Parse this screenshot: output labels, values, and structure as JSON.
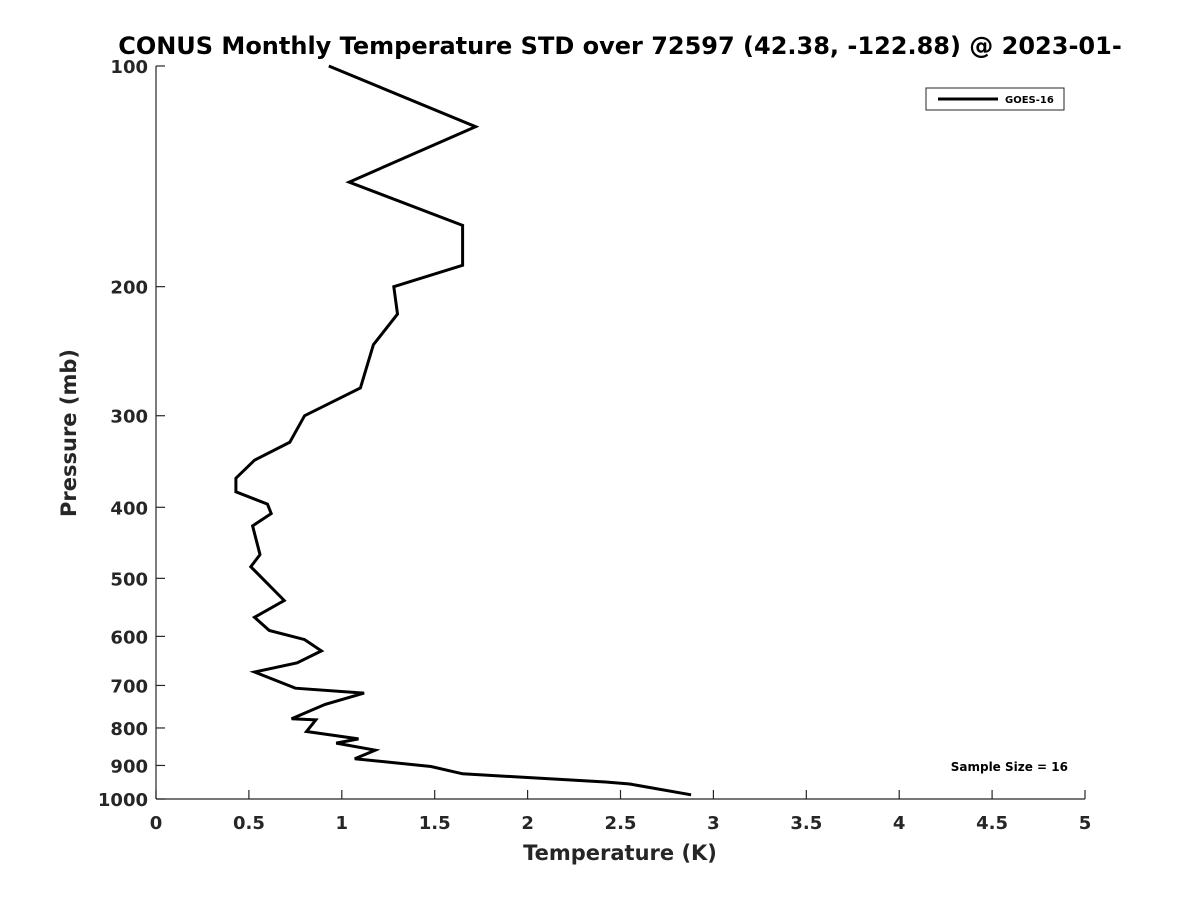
{
  "chart_data": {
    "type": "line",
    "title": "CONUS Monthly Temperature STD over 72597 (42.38, -122.88) @ 2023-01-",
    "xlabel": "Temperature (K)",
    "ylabel": "Pressure (mb)",
    "xlim": [
      0,
      5
    ],
    "ylim": [
      100,
      1000
    ],
    "yscale": "log",
    "yreversed": true,
    "xticks": [
      0,
      0.5,
      1,
      1.5,
      2,
      2.5,
      3,
      3.5,
      4,
      4.5,
      5
    ],
    "xtick_labels": [
      "0",
      "0.5",
      "1",
      "1.5",
      "2",
      "2.5",
      "3",
      "3.5",
      "4",
      "4.5",
      "5"
    ],
    "yticks": [
      100,
      200,
      300,
      400,
      500,
      600,
      700,
      800,
      900,
      1000
    ],
    "ytick_labels": [
      "100",
      "200",
      "300",
      "400",
      "500",
      "600",
      "700",
      "800",
      "900",
      "1000"
    ],
    "grid": false,
    "legend_position": "top-right",
    "series": [
      {
        "name": "GOES-16",
        "color": "#000000",
        "x": [
          0.93,
          1.72,
          1.04,
          1.65,
          1.65,
          1.28,
          1.3,
          1.17,
          1.1,
          0.8,
          0.72,
          0.53,
          0.43,
          0.43,
          0.6,
          0.62,
          0.52,
          0.55,
          0.56,
          0.51,
          0.69,
          0.53,
          0.61,
          0.8,
          0.89,
          0.76,
          0.53,
          0.75,
          1.12,
          0.91,
          0.73,
          0.86,
          0.81,
          1.09,
          0.97,
          1.18,
          1.07,
          1.48,
          1.65,
          2.42,
          2.55,
          2.88
        ],
        "y": [
          100,
          121,
          144,
          165,
          187,
          200,
          218,
          240,
          275,
          300,
          326,
          345,
          365,
          381,
          396,
          408,
          424,
          454,
          464,
          482,
          536,
          565,
          589,
          606,
          628,
          652,
          671,
          706,
          717,
          743,
          777,
          780,
          809,
          828,
          839,
          858,
          881,
          903,
          924,
          948,
          954,
          987
        ]
      }
    ],
    "annotations": [
      "Sample Size = 16"
    ]
  }
}
